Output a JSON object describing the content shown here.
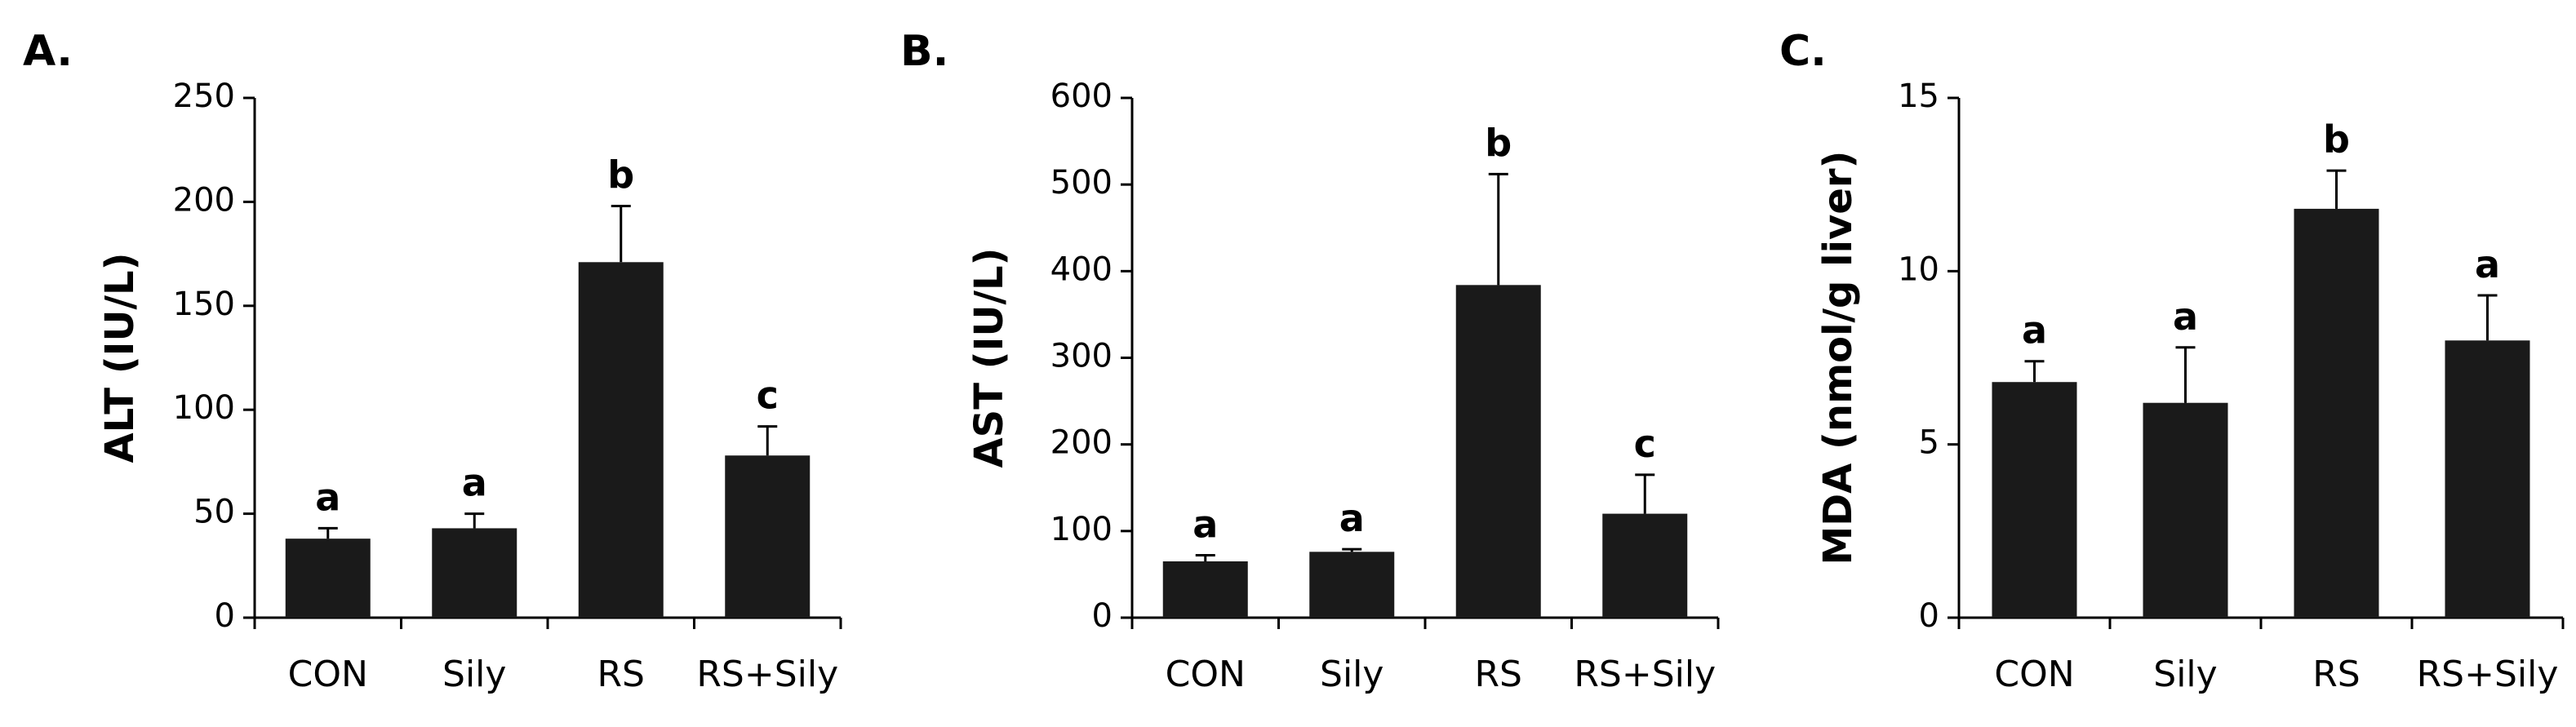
{
  "chart_data": [
    {
      "type": "bar",
      "panel_label": "A.",
      "ylabel": "ALT (IU/L)",
      "categories": [
        "CON",
        "Sily",
        "RS",
        "RS+Sily"
      ],
      "values": [
        38,
        43,
        171,
        78
      ],
      "errors": [
        5,
        7,
        27,
        14
      ],
      "significance": [
        "a",
        "a",
        "b",
        "c"
      ],
      "ylim": [
        0,
        250
      ],
      "yticks": [
        0,
        50,
        100,
        150,
        200,
        250
      ],
      "color": "#1a1a1a"
    },
    {
      "type": "bar",
      "panel_label": "B.",
      "ylabel": "AST (IU/L)",
      "categories": [
        "CON",
        "Sily",
        "RS",
        "RS+Sily"
      ],
      "values": [
        65,
        76,
        384,
        120
      ],
      "errors": [
        7,
        3,
        128,
        45
      ],
      "significance": [
        "a",
        "a",
        "b",
        "c"
      ],
      "ylim": [
        0,
        600
      ],
      "yticks": [
        0,
        100,
        200,
        300,
        400,
        500,
        600
      ],
      "color": "#1a1a1a"
    },
    {
      "type": "bar",
      "panel_label": "C.",
      "ylabel": "MDA (nmol/g liver)",
      "categories": [
        "CON",
        "Sily",
        "RS",
        "RS+Sily"
      ],
      "values": [
        6.8,
        6.2,
        11.8,
        8.0
      ],
      "errors": [
        0.6,
        1.6,
        1.1,
        1.3
      ],
      "significance": [
        "a",
        "a",
        "b",
        "a"
      ],
      "ylim": [
        0,
        15
      ],
      "yticks": [
        0,
        5,
        10,
        15
      ],
      "color": "#1a1a1a"
    }
  ]
}
